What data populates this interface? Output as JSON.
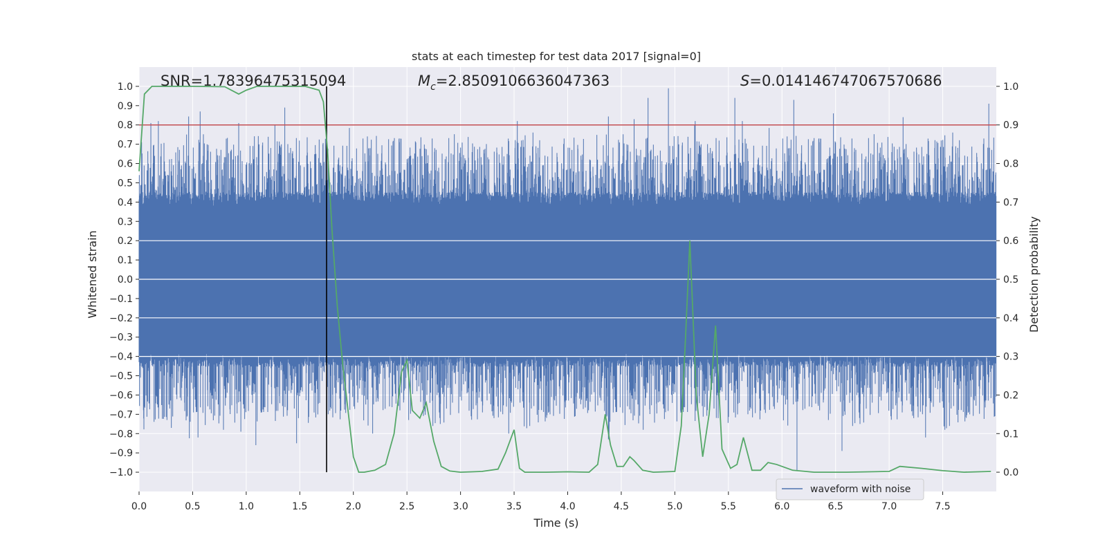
{
  "chart_data": {
    "type": "line",
    "title": "stats at each timestep for test data 2017 [signal=0]",
    "xlabel": "Time (s)",
    "ylabel_left": "Whitened strain",
    "ylabel_right": "Detection probability",
    "xlim": [
      0.0,
      8.0
    ],
    "ylim_left": [
      -1.1,
      1.1
    ],
    "ylim_right": [
      -0.05,
      1.05
    ],
    "x_ticks": [
      0.0,
      0.5,
      1.0,
      1.5,
      2.0,
      2.5,
      3.0,
      3.5,
      4.0,
      4.5,
      5.0,
      5.5,
      6.0,
      6.5,
      7.0,
      7.5
    ],
    "x_tick_labels": [
      "0.0",
      "0.5",
      "1.0",
      "1.5",
      "2.0",
      "2.5",
      "3.0",
      "3.5",
      "4.0",
      "4.5",
      "5.0",
      "5.5",
      "6.0",
      "6.5",
      "7.0",
      "7.5"
    ],
    "y_left_ticks": [
      -1.0,
      -0.9,
      -0.8,
      -0.7,
      -0.6,
      -0.5,
      -0.4,
      -0.3,
      -0.2,
      -0.1,
      0.0,
      0.1,
      0.2,
      0.3,
      0.4,
      0.5,
      0.6,
      0.7,
      0.8,
      0.9,
      1.0
    ],
    "y_left_tick_labels": [
      "−1.0",
      "−0.9",
      "−0.8",
      "−0.7",
      "−0.6",
      "−0.5",
      "−0.4",
      "−0.3",
      "−0.2",
      "−0.1",
      "0.0",
      "0.1",
      "0.2",
      "0.3",
      "0.4",
      "0.5",
      "0.6",
      "0.7",
      "0.8",
      "0.9",
      "1.0"
    ],
    "y_right_ticks": [
      0.0,
      0.1,
      0.2,
      0.3,
      0.4,
      0.5,
      0.6,
      0.7,
      0.8,
      0.9,
      1.0
    ],
    "y_right_tick_labels": [
      "0.0",
      "0.1",
      "0.2",
      "0.3",
      "0.4",
      "0.5",
      "0.6",
      "0.7",
      "0.8",
      "0.9",
      "1.0"
    ],
    "annotations": {
      "snr": "SNR=1.78396475315094",
      "mc_symbol": "M",
      "mc_sub": "c",
      "mc_value": "=2.8509106636047363",
      "s_symbol": "S",
      "s_value": "=0.014146747067570686"
    },
    "threshold": {
      "value": 0.9,
      "axis": "right",
      "color": "#c44e52"
    },
    "marker_time": 1.75,
    "marker_range_left": [
      -1.0,
      1.0
    ],
    "legend": {
      "label": "waveform with noise",
      "location": "lower-right"
    },
    "series": [
      {
        "name": "waveform with noise",
        "axis": "left",
        "color": "#4c72b0",
        "kind": "noise",
        "duration": 8.0,
        "core_amplitude": 0.42,
        "peaks_positive": [
          [
            0.11,
            0.81
          ],
          [
            0.18,
            0.82
          ],
          [
            0.57,
            0.87
          ],
          [
            0.93,
            0.81
          ],
          [
            1.36,
            0.89
          ],
          [
            3.53,
            0.82
          ],
          [
            4.62,
            0.83
          ],
          [
            4.75,
            0.94
          ],
          [
            4.94,
            0.99
          ],
          [
            5.19,
            0.82
          ],
          [
            5.56,
            0.94
          ],
          [
            5.63,
            0.82
          ],
          [
            6.11,
            0.93
          ],
          [
            6.48,
            0.86
          ],
          [
            7.13,
            0.84
          ],
          [
            7.93,
            0.91
          ]
        ],
        "peaks_negative": [
          [
            0.55,
            -0.82
          ],
          [
            0.95,
            -0.79
          ],
          [
            1.09,
            -0.86
          ],
          [
            1.47,
            -0.85
          ],
          [
            2.18,
            -0.8
          ],
          [
            3.45,
            -0.8
          ],
          [
            4.38,
            -0.83
          ],
          [
            6.14,
            -0.99
          ],
          [
            6.56,
            -0.89
          ],
          [
            7.34,
            -0.82
          ],
          [
            7.52,
            -0.78
          ]
        ]
      },
      {
        "name": "detection probability",
        "axis": "right",
        "color": "#55a868",
        "x": [
          0.0,
          0.05,
          0.12,
          0.25,
          0.5,
          0.8,
          0.93,
          1.0,
          1.1,
          1.3,
          1.55,
          1.68,
          1.72,
          1.76,
          1.8,
          1.85,
          1.9,
          1.95,
          2.0,
          2.05,
          2.1,
          2.2,
          2.3,
          2.38,
          2.45,
          2.5,
          2.55,
          2.62,
          2.68,
          2.75,
          2.82,
          2.9,
          3.0,
          3.2,
          3.35,
          3.42,
          3.5,
          3.55,
          3.6,
          3.8,
          4.0,
          4.2,
          4.28,
          4.35,
          4.4,
          4.46,
          4.52,
          4.58,
          4.62,
          4.7,
          4.8,
          5.0,
          5.06,
          5.1,
          5.14,
          5.2,
          5.26,
          5.32,
          5.38,
          5.44,
          5.52,
          5.58,
          5.64,
          5.72,
          5.8,
          5.87,
          5.95,
          6.1,
          6.3,
          6.6,
          7.0,
          7.1,
          7.3,
          7.5,
          7.7,
          7.95
        ],
        "y": [
          0.78,
          0.98,
          1.0,
          1.0,
          1.0,
          0.999,
          0.98,
          0.99,
          1.0,
          1.0,
          1.0,
          0.99,
          0.96,
          0.83,
          0.63,
          0.43,
          0.28,
          0.16,
          0.04,
          0.0,
          0.0,
          0.005,
          0.02,
          0.1,
          0.26,
          0.29,
          0.16,
          0.14,
          0.18,
          0.08,
          0.015,
          0.003,
          0.0,
          0.002,
          0.008,
          0.05,
          0.11,
          0.01,
          0.0,
          0.0,
          0.001,
          0.0,
          0.02,
          0.15,
          0.07,
          0.015,
          0.015,
          0.04,
          0.03,
          0.005,
          0.0,
          0.002,
          0.12,
          0.35,
          0.6,
          0.2,
          0.04,
          0.15,
          0.38,
          0.06,
          0.01,
          0.02,
          0.09,
          0.005,
          0.005,
          0.025,
          0.02,
          0.005,
          0.0,
          0.0,
          0.002,
          0.015,
          0.01,
          0.004,
          0.0,
          0.002
        ]
      }
    ]
  }
}
